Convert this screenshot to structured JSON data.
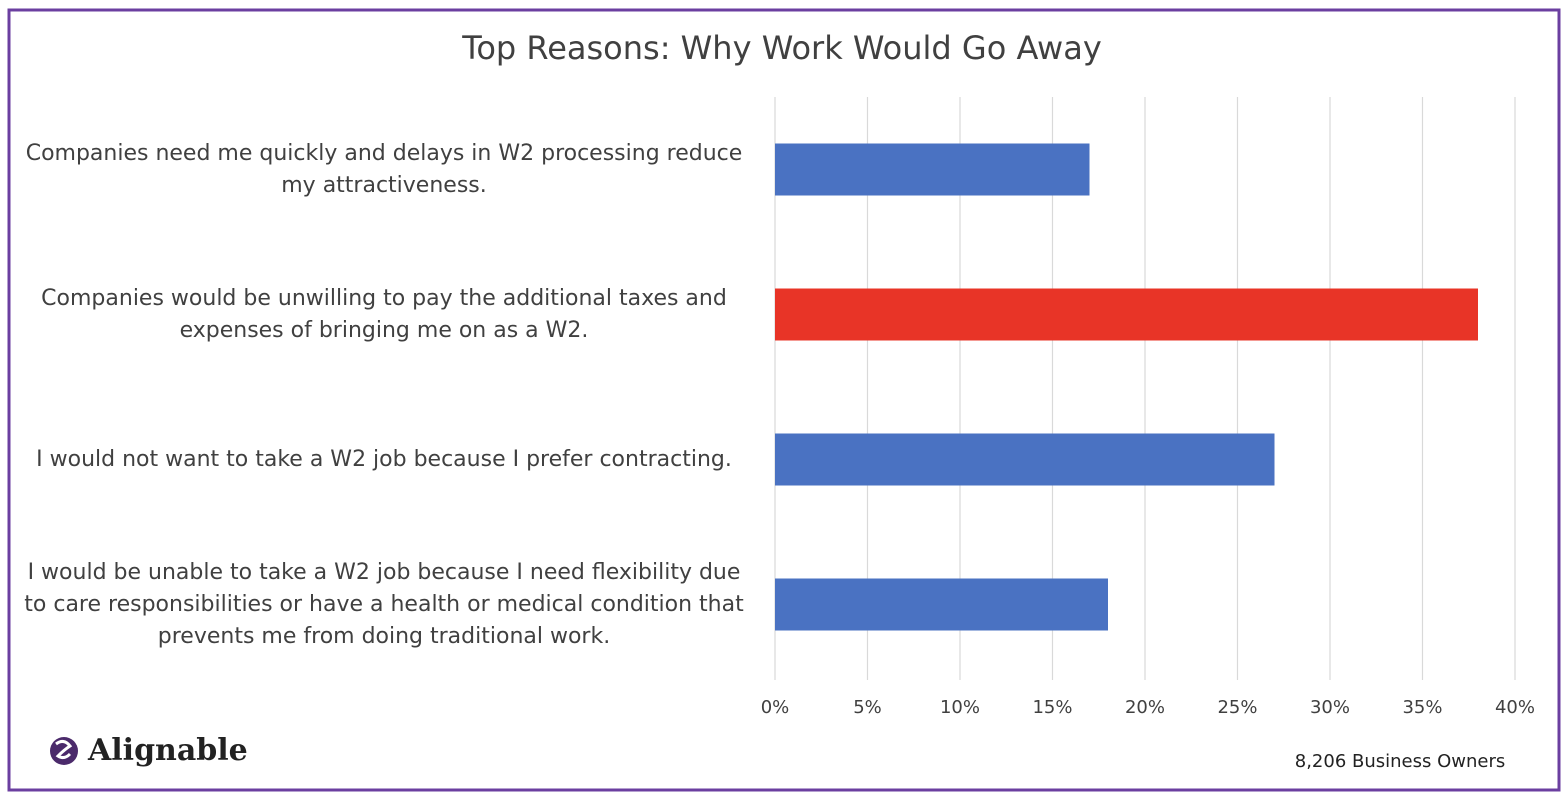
{
  "chart_data": {
    "type": "hbar",
    "title": "Top Reasons: Why Work Would Go Away",
    "categories": [
      "Companies need me quickly and delays in W2 processing reduce my attractiveness.",
      "Companies would be unwilling to pay the additional taxes and expenses of bringing me on as a W2.",
      "I would not want to take a W2 job because I prefer contracting.",
      "I would be unable to take a W2 job because I need flexibility due to care responsibilities or have a health or medical condition that prevents me from doing traditional work."
    ],
    "values": [
      17,
      38,
      27,
      18
    ],
    "colors": [
      "#4a72c2",
      "#e83427",
      "#4a72c2",
      "#4a72c2"
    ],
    "xlim": [
      0,
      40
    ],
    "xticks": [
      {
        "value": 0,
        "label": "0%"
      },
      {
        "value": 5,
        "label": "5%"
      },
      {
        "value": 10,
        "label": "10%"
      },
      {
        "value": 15,
        "label": "15%"
      },
      {
        "value": 20,
        "label": "20%"
      },
      {
        "value": 25,
        "label": "25%"
      },
      {
        "value": 30,
        "label": "30%"
      },
      {
        "value": 35,
        "label": "35%"
      },
      {
        "value": 40,
        "label": "40%"
      }
    ],
    "grid": true,
    "logo": "Alignable",
    "note": "8,206 Business Owners"
  }
}
